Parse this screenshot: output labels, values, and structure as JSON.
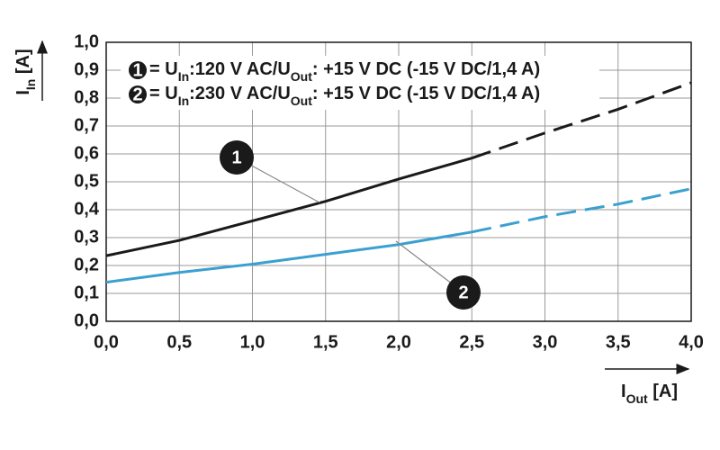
{
  "chart_data": {
    "type": "line",
    "ylabel_parts": [
      "I",
      "In",
      " [A]"
    ],
    "xlabel_parts": [
      "I",
      "Out",
      " [A]"
    ],
    "x": [
      0,
      0.5,
      1,
      1.5,
      2,
      2.5,
      3,
      3.5,
      4
    ],
    "dash_start": 2.5,
    "series": [
      {
        "label": "1",
        "name_parts": [
          "= U",
          "In",
          ":120 V AC/U",
          "Out",
          ": +15 V DC (-15 V DC/1,4 A)"
        ],
        "color": "#1a1a1a",
        "values": [
          0.235,
          0.29,
          0.36,
          0.43,
          0.51,
          0.585,
          0.675,
          0.76,
          0.855
        ]
      },
      {
        "label": "2",
        "name_parts": [
          "= U",
          "In",
          ":230 V AC/U",
          "Out",
          ": +15 V DC (-15 V DC/1,4 A)"
        ],
        "color": "#3aa0d0",
        "values": [
          0.14,
          0.175,
          0.205,
          0.24,
          0.275,
          0.32,
          0.375,
          0.42,
          0.475
        ]
      }
    ],
    "xlim": [
      0,
      4
    ],
    "ylim": [
      0,
      1
    ],
    "xticks": [
      {
        "value": 0,
        "label": "0,0"
      },
      {
        "value": 0.5,
        "label": "0,5"
      },
      {
        "value": 1,
        "label": "1,0"
      },
      {
        "value": 1.5,
        "label": "1,5"
      },
      {
        "value": 2,
        "label": "2,0"
      },
      {
        "value": 2.5,
        "label": "2,5"
      },
      {
        "value": 3,
        "label": "3,0"
      },
      {
        "value": 3.5,
        "label": "3,5"
      },
      {
        "value": 4,
        "label": "4,0"
      }
    ],
    "yticks": [
      {
        "value": 0,
        "label": "0,0"
      },
      {
        "value": 0.1,
        "label": "0,1"
      },
      {
        "value": 0.2,
        "label": "0,2"
      },
      {
        "value": 0.3,
        "label": "0,3"
      },
      {
        "value": 0.4,
        "label": "0,4"
      },
      {
        "value": 0.5,
        "label": "0,5"
      },
      {
        "value": 0.6,
        "label": "0,6"
      },
      {
        "value": 0.7,
        "label": "0,7"
      },
      {
        "value": 0.8,
        "label": "0,8"
      },
      {
        "value": 0.9,
        "label": "0,9"
      },
      {
        "value": 1,
        "label": "1,0"
      }
    ],
    "grid": true
  }
}
